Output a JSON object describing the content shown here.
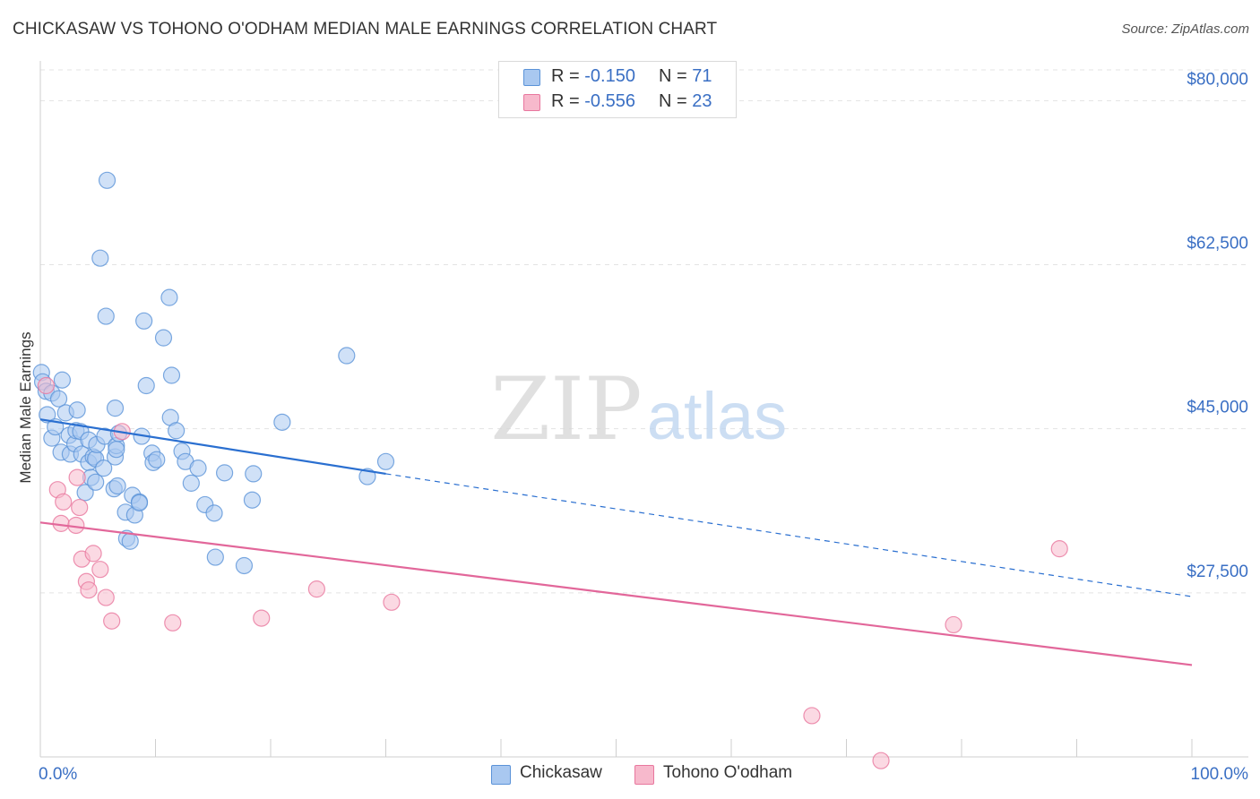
{
  "header": {
    "title": "CHICKASAW VS TOHONO O'ODHAM MEDIAN MALE EARNINGS CORRELATION CHART",
    "source": "Source: ZipAtlas.com"
  },
  "watermark": {
    "zip": "ZIP",
    "atlas": "atlas"
  },
  "legend_stats": [
    {
      "r_label": "R =",
      "r_value": "-0.150",
      "n_label": "N =",
      "n_value": "71",
      "color": "#a9c8f0"
    },
    {
      "r_label": "R =",
      "r_value": "-0.556",
      "n_label": "N =",
      "n_value": "23",
      "color": "#f7b9cc"
    }
  ],
  "chart_data": {
    "type": "scatter",
    "title": "CHICKASAW VS TOHONO O'ODHAM MEDIAN MALE EARNINGS CORRELATION CHART",
    "xlabel": "",
    "ylabel": "Median Male Earnings",
    "xlim": [
      0,
      100
    ],
    "ylim": [
      10000,
      85000
    ],
    "x_tick_labels": [
      "0.0%",
      "100.0%"
    ],
    "y_ticks": [
      27500,
      45000,
      62500,
      80000
    ],
    "y_tick_labels": [
      "$27,500",
      "$45,000",
      "$62,500",
      "$80,000"
    ],
    "grid": true,
    "legend_position": "bottom",
    "series": [
      {
        "name": "Chickasaw",
        "color": "#5b93d8",
        "fill": "#a9c8f0",
        "points": [
          [
            0.1,
            51000
          ],
          [
            0.2,
            50000
          ],
          [
            0.5,
            49000
          ],
          [
            0.6,
            46500
          ],
          [
            1.0,
            48800
          ],
          [
            1.0,
            44000
          ],
          [
            1.3,
            45200
          ],
          [
            1.6,
            48200
          ],
          [
            1.8,
            42500
          ],
          [
            1.9,
            50200
          ],
          [
            2.2,
            46700
          ],
          [
            2.5,
            44300
          ],
          [
            2.6,
            42300
          ],
          [
            3.0,
            43400
          ],
          [
            3.1,
            44800
          ],
          [
            3.2,
            47000
          ],
          [
            3.5,
            44700
          ],
          [
            3.6,
            42300
          ],
          [
            3.9,
            38200
          ],
          [
            4.2,
            41400
          ],
          [
            4.2,
            43800
          ],
          [
            4.4,
            39800
          ],
          [
            4.6,
            42000
          ],
          [
            4.8,
            41800
          ],
          [
            4.8,
            39300
          ],
          [
            4.9,
            43300
          ],
          [
            5.2,
            63200
          ],
          [
            5.5,
            40800
          ],
          [
            5.6,
            44200
          ],
          [
            5.7,
            57000
          ],
          [
            5.8,
            71500
          ],
          [
            6.4,
            38600
          ],
          [
            6.5,
            42000
          ],
          [
            6.5,
            47200
          ],
          [
            6.6,
            43200
          ],
          [
            6.6,
            42800
          ],
          [
            6.7,
            38900
          ],
          [
            6.8,
            44500
          ],
          [
            7.4,
            36100
          ],
          [
            7.5,
            33300
          ],
          [
            7.8,
            33000
          ],
          [
            8.0,
            37900
          ],
          [
            8.2,
            35800
          ],
          [
            8.6,
            37200
          ],
          [
            8.6,
            37100
          ],
          [
            8.8,
            44200
          ],
          [
            9.0,
            56500
          ],
          [
            9.2,
            49600
          ],
          [
            9.7,
            42400
          ],
          [
            9.8,
            41400
          ],
          [
            10.1,
            41700
          ],
          [
            10.7,
            54700
          ],
          [
            11.2,
            59000
          ],
          [
            11.3,
            46200
          ],
          [
            11.4,
            50700
          ],
          [
            11.8,
            44800
          ],
          [
            12.3,
            42600
          ],
          [
            12.6,
            41500
          ],
          [
            13.1,
            39200
          ],
          [
            13.7,
            40800
          ],
          [
            14.3,
            36900
          ],
          [
            15.1,
            36000
          ],
          [
            15.2,
            31300
          ],
          [
            16.0,
            40300
          ],
          [
            17.7,
            30400
          ],
          [
            18.4,
            37400
          ],
          [
            18.5,
            40200
          ],
          [
            21.0,
            45700
          ],
          [
            26.6,
            52800
          ],
          [
            28.4,
            39900
          ],
          [
            30.0,
            41500
          ]
        ]
      },
      {
        "name": "Tohono O'odham",
        "color": "#e8779e",
        "fill": "#f7b9cc",
        "points": [
          [
            0.5,
            49600
          ],
          [
            1.5,
            38500
          ],
          [
            1.8,
            34900
          ],
          [
            2.0,
            37200
          ],
          [
            3.1,
            34700
          ],
          [
            3.2,
            39800
          ],
          [
            3.4,
            36600
          ],
          [
            3.6,
            31100
          ],
          [
            4.0,
            28700
          ],
          [
            4.2,
            27800
          ],
          [
            4.6,
            31700
          ],
          [
            5.2,
            30000
          ],
          [
            5.7,
            27000
          ],
          [
            6.2,
            24500
          ],
          [
            7.1,
            44700
          ],
          [
            11.5,
            24300
          ],
          [
            19.2,
            24800
          ],
          [
            24.0,
            27900
          ],
          [
            30.5,
            26500
          ],
          [
            67.0,
            14400
          ],
          [
            73.0,
            9600
          ],
          [
            79.3,
            24100
          ],
          [
            88.5,
            32200
          ]
        ]
      }
    ],
    "trend_lines": [
      {
        "series": "Chickasaw",
        "solid": [
          [
            0,
            46000
          ],
          [
            30,
            40200
          ]
        ],
        "dashed": [
          [
            30,
            40200
          ],
          [
            100,
            27100
          ]
        ]
      },
      {
        "series": "Tohono O'odham",
        "solid": [
          [
            0,
            35000
          ],
          [
            100,
            19800
          ]
        ]
      }
    ]
  }
}
